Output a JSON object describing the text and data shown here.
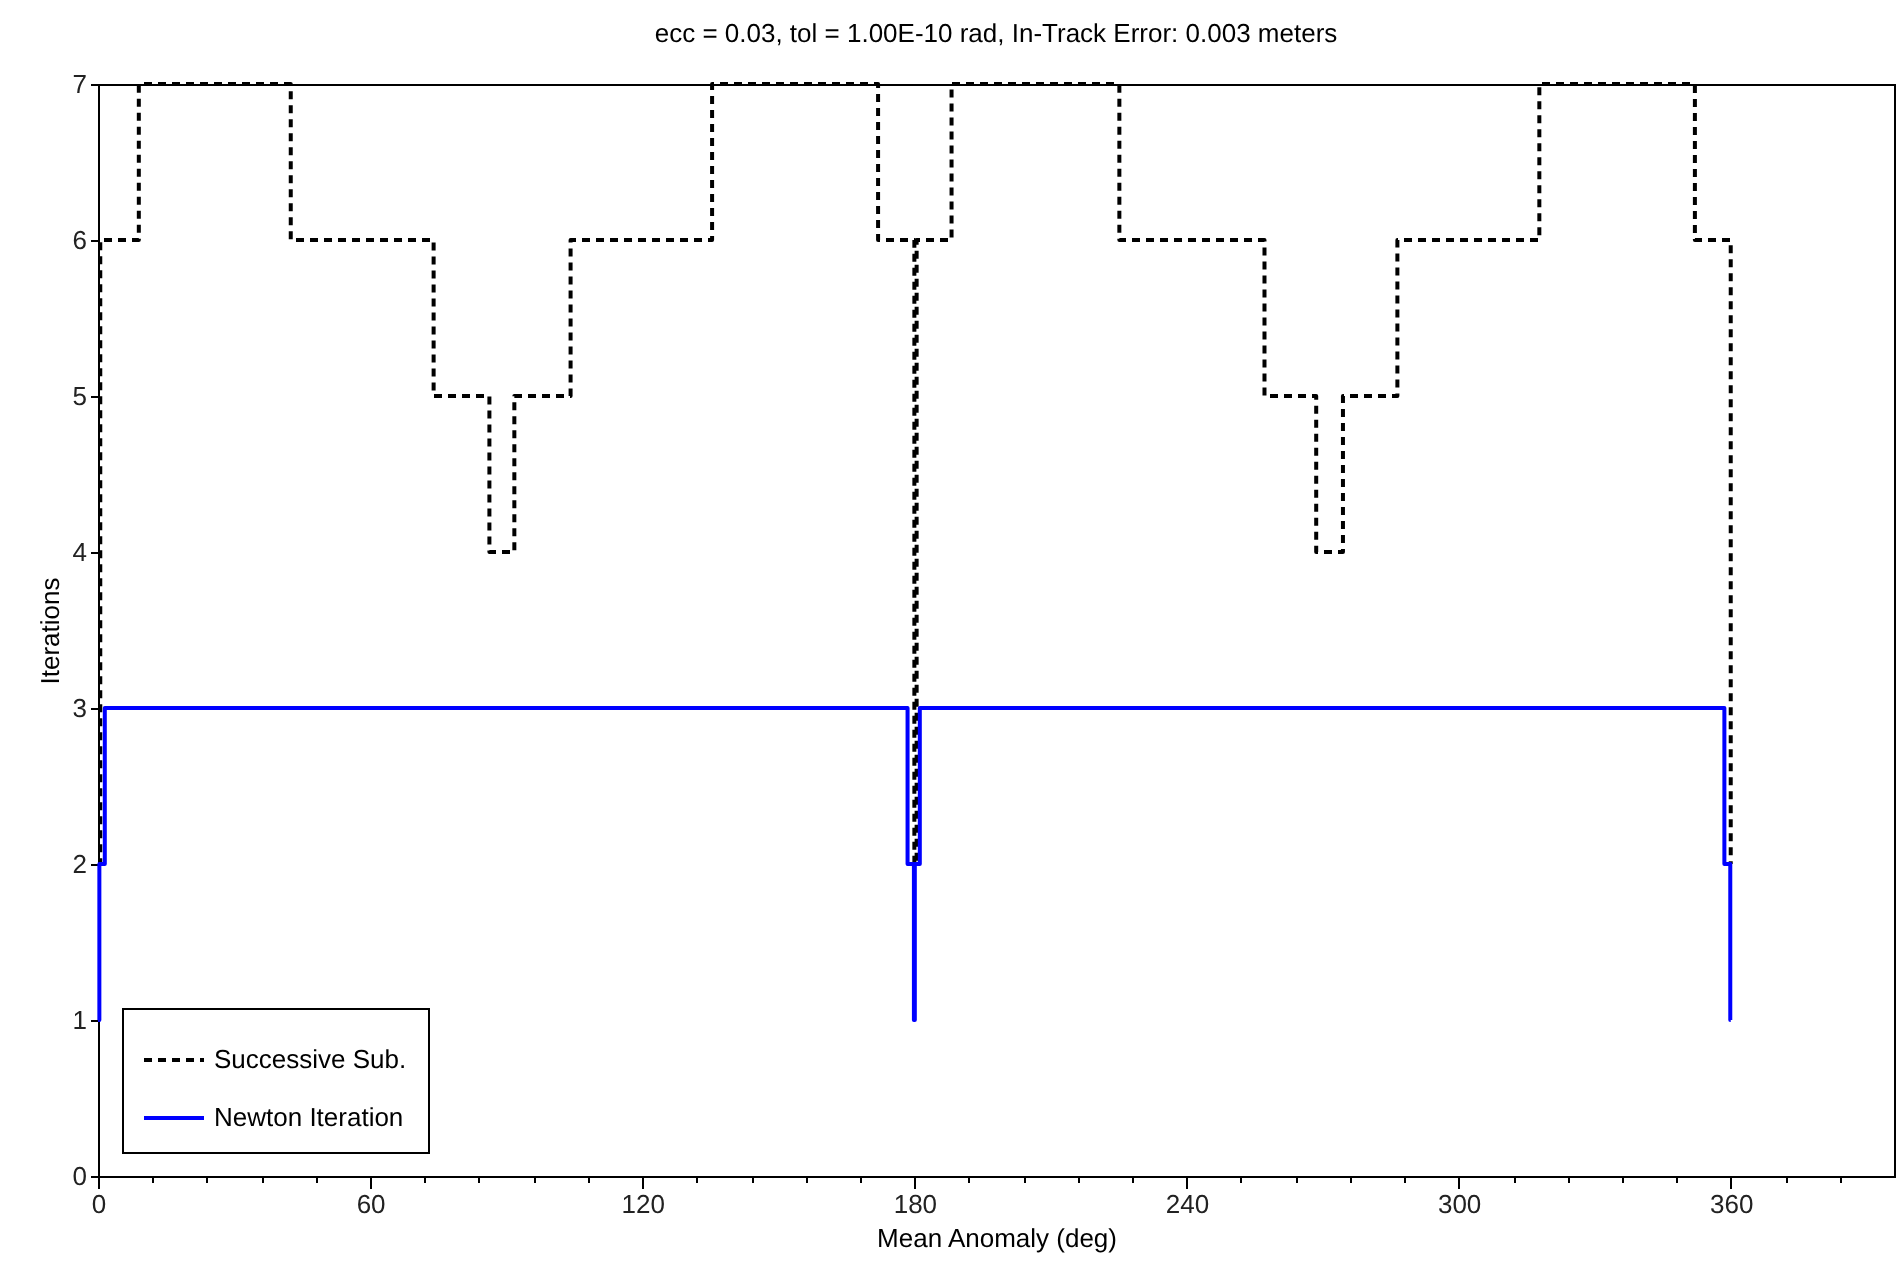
{
  "chart_data": {
    "type": "step",
    "title": "ecc = 0.03, tol = 1.00E-10 rad, In-Track Error: 0.003 meters",
    "xlabel": "Mean Anomaly (deg)",
    "ylabel": "Iterations",
    "series": [
      {
        "name": "Successive Sub.",
        "color": "#000000",
        "line_style": "dashed",
        "x": [
          0,
          0.5,
          9,
          42.5,
          74,
          86.3,
          91.8,
          104.2,
          135.4,
          172,
          180,
          180.5,
          188.2,
          225.2,
          257.2,
          268.6,
          274.5,
          286.5,
          317.8,
          352.1,
          360
        ],
        "values": [
          2,
          6,
          7,
          6,
          5,
          4,
          5,
          6,
          7,
          6,
          2,
          6,
          7,
          6,
          5,
          4,
          5,
          6,
          7,
          6,
          2
        ]
      },
      {
        "name": "Newton Iteration",
        "color": "#0000ff",
        "line_style": "solid",
        "x": [
          0,
          0.3,
          1.5,
          178.5,
          179.9,
          180.1,
          181.2,
          358.6,
          359.9,
          360
        ],
        "values": [
          1,
          2,
          3,
          2,
          1,
          2,
          3,
          2,
          1,
          1
        ]
      }
    ],
    "xlim": [
      0,
      396
    ],
    "ylim": [
      0,
      7
    ],
    "xticks": [
      0,
      {
        "value": 12,
        "label": null
      },
      {
        "value": 24,
        "label": null
      },
      {
        "value": 36,
        "label": null
      },
      {
        "value": 48,
        "label": null
      },
      60,
      {
        "value": 72,
        "label": null
      },
      {
        "value": 84,
        "label": null
      },
      {
        "value": 96,
        "label": null
      },
      {
        "value": 108,
        "label": null
      },
      120,
      {
        "value": 132,
        "label": null
      },
      {
        "value": 144,
        "label": null
      },
      {
        "value": 156,
        "label": null
      },
      {
        "value": 168,
        "label": null
      },
      180,
      {
        "value": 192,
        "label": null
      },
      {
        "value": 204,
        "label": null
      },
      {
        "value": 216,
        "label": null
      },
      {
        "value": 228,
        "label": null
      },
      240,
      {
        "value": 252,
        "label": null
      },
      {
        "value": 264,
        "label": null
      },
      {
        "value": 276,
        "label": null
      },
      {
        "value": 288,
        "label": null
      },
      300,
      {
        "value": 312,
        "label": null
      },
      {
        "value": 324,
        "label": null
      },
      {
        "value": 336,
        "label": null
      },
      {
        "value": 348,
        "label": null
      },
      360,
      {
        "value": 372,
        "label": null
      },
      {
        "value": 384,
        "label": null
      }
    ],
    "yticks": [
      0,
      1,
      2,
      3,
      4,
      5,
      6,
      7
    ],
    "grid": false,
    "legend": "bottom left"
  }
}
